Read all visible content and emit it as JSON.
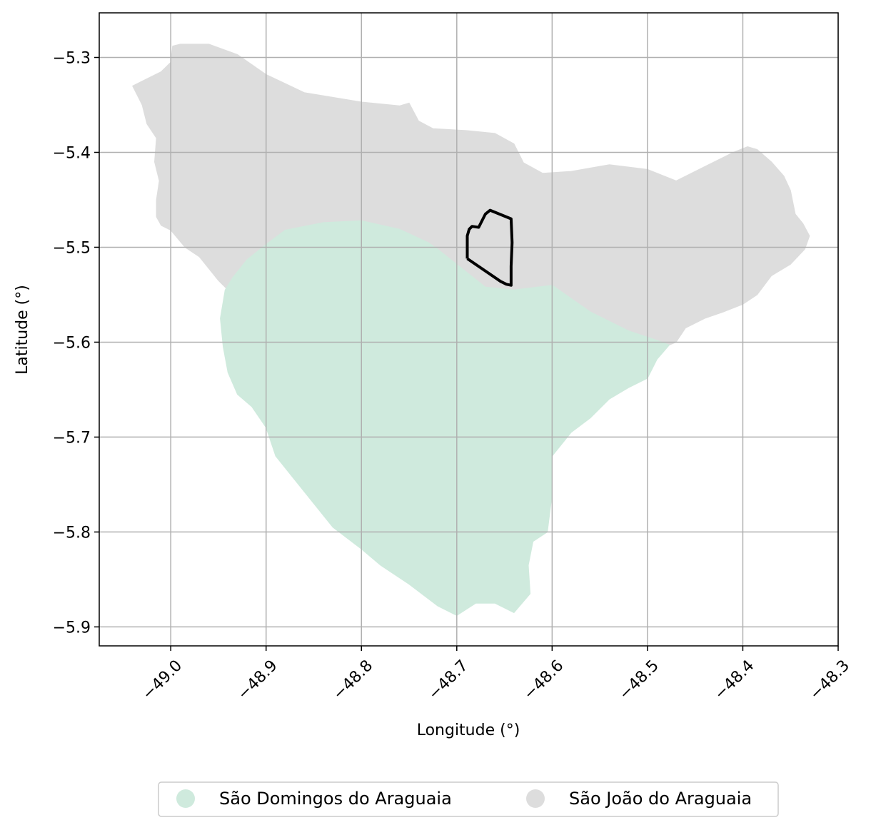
{
  "chart_data": {
    "type": "map",
    "title": "",
    "xlabel": "Longitude (°)",
    "ylabel": "Latitude (°)",
    "xlim": [
      -49.075,
      -48.3
    ],
    "ylim": [
      -5.92,
      -5.253
    ],
    "grid": true,
    "x_ticks": [
      -49.0,
      -48.9,
      -48.8,
      -48.7,
      -48.6,
      -48.5,
      -48.4,
      -48.3
    ],
    "x_tick_labels": [
      "−49.0",
      "−48.9",
      "−48.8",
      "−48.7",
      "−48.6",
      "−48.5",
      "−48.4",
      "−48.3"
    ],
    "y_ticks": [
      -5.3,
      -5.4,
      -5.5,
      -5.6,
      -5.7,
      -5.8,
      -5.9
    ],
    "y_tick_labels": [
      "−5.3",
      "−5.4",
      "−5.5",
      "−5.6",
      "−5.7",
      "−5.8",
      "−5.9"
    ],
    "regions": [
      {
        "name": "São João do Araguaia",
        "color": "#dddddd",
        "outline": [
          [
            -49.04,
            -5.33
          ],
          [
            -49.03,
            -5.325
          ],
          [
            -49.01,
            -5.315
          ],
          [
            -49.0,
            -5.305
          ],
          [
            -48.998,
            -5.288
          ],
          [
            -48.99,
            -5.286
          ],
          [
            -48.96,
            -5.286
          ],
          [
            -48.93,
            -5.297
          ],
          [
            -48.9,
            -5.318
          ],
          [
            -48.86,
            -5.337
          ],
          [
            -48.8,
            -5.347
          ],
          [
            -48.76,
            -5.351
          ],
          [
            -48.75,
            -5.348
          ],
          [
            -48.74,
            -5.367
          ],
          [
            -48.725,
            -5.375
          ],
          [
            -48.69,
            -5.377
          ],
          [
            -48.66,
            -5.38
          ],
          [
            -48.64,
            -5.391
          ],
          [
            -48.63,
            -5.411
          ],
          [
            -48.61,
            -5.422
          ],
          [
            -48.58,
            -5.42
          ],
          [
            -48.54,
            -5.413
          ],
          [
            -48.5,
            -5.418
          ],
          [
            -48.47,
            -5.43
          ],
          [
            -48.44,
            -5.415
          ],
          [
            -48.41,
            -5.4
          ],
          [
            -48.395,
            -5.394
          ],
          [
            -48.385,
            -5.397
          ],
          [
            -48.37,
            -5.41
          ],
          [
            -48.357,
            -5.425
          ],
          [
            -48.35,
            -5.44
          ],
          [
            -48.345,
            -5.465
          ],
          [
            -48.337,
            -5.475
          ],
          [
            -48.33,
            -5.488
          ],
          [
            -48.335,
            -5.502
          ],
          [
            -48.35,
            -5.518
          ],
          [
            -48.37,
            -5.53
          ],
          [
            -48.385,
            -5.55
          ],
          [
            -48.4,
            -5.56
          ],
          [
            -48.42,
            -5.568
          ],
          [
            -48.44,
            -5.575
          ],
          [
            -48.46,
            -5.585
          ],
          [
            -48.47,
            -5.6
          ],
          [
            -48.477,
            -5.603
          ],
          [
            -48.49,
            -5.598
          ],
          [
            -48.52,
            -5.588
          ],
          [
            -48.56,
            -5.568
          ],
          [
            -48.6,
            -5.54
          ],
          [
            -48.64,
            -5.545
          ],
          [
            -48.67,
            -5.542
          ],
          [
            -48.7,
            -5.518
          ],
          [
            -48.72,
            -5.502
          ],
          [
            -48.73,
            -5.495
          ],
          [
            -48.76,
            -5.481
          ],
          [
            -48.8,
            -5.472
          ],
          [
            -48.84,
            -5.474
          ],
          [
            -48.88,
            -5.482
          ],
          [
            -48.9,
            -5.497
          ],
          [
            -48.92,
            -5.513
          ],
          [
            -48.935,
            -5.532
          ],
          [
            -48.94,
            -5.545
          ],
          [
            -48.95,
            -5.535
          ],
          [
            -48.97,
            -5.51
          ],
          [
            -48.985,
            -5.5
          ],
          [
            -49.0,
            -5.482
          ],
          [
            -49.01,
            -5.477
          ],
          [
            -49.015,
            -5.468
          ],
          [
            -49.015,
            -5.45
          ],
          [
            -49.012,
            -5.43
          ],
          [
            -49.017,
            -5.41
          ],
          [
            -49.015,
            -5.385
          ],
          [
            -49.025,
            -5.37
          ],
          [
            -49.03,
            -5.35
          ],
          [
            -49.04,
            -5.33
          ]
        ]
      },
      {
        "name": "São Domingos do Araguaia",
        "color": "#cfeadd",
        "outline": [
          [
            -48.943,
            -5.545
          ],
          [
            -48.935,
            -5.532
          ],
          [
            -48.92,
            -5.513
          ],
          [
            -48.9,
            -5.497
          ],
          [
            -48.88,
            -5.482
          ],
          [
            -48.84,
            -5.474
          ],
          [
            -48.8,
            -5.472
          ],
          [
            -48.76,
            -5.481
          ],
          [
            -48.73,
            -5.495
          ],
          [
            -48.72,
            -5.502
          ],
          [
            -48.7,
            -5.518
          ],
          [
            -48.67,
            -5.542
          ],
          [
            -48.64,
            -5.545
          ],
          [
            -48.6,
            -5.54
          ],
          [
            -48.56,
            -5.568
          ],
          [
            -48.52,
            -5.588
          ],
          [
            -48.49,
            -5.598
          ],
          [
            -48.477,
            -5.603
          ],
          [
            -48.49,
            -5.618
          ],
          [
            -48.5,
            -5.638
          ],
          [
            -48.52,
            -5.648
          ],
          [
            -48.54,
            -5.66
          ],
          [
            -48.56,
            -5.68
          ],
          [
            -48.58,
            -5.695
          ],
          [
            -48.6,
            -5.72
          ],
          [
            -48.6,
            -5.76
          ],
          [
            -48.605,
            -5.8
          ],
          [
            -48.62,
            -5.81
          ],
          [
            -48.625,
            -5.835
          ],
          [
            -48.623,
            -5.865
          ],
          [
            -48.64,
            -5.885
          ],
          [
            -48.66,
            -5.875
          ],
          [
            -48.68,
            -5.875
          ],
          [
            -48.7,
            -5.888
          ],
          [
            -48.72,
            -5.878
          ],
          [
            -48.75,
            -5.855
          ],
          [
            -48.78,
            -5.835
          ],
          [
            -48.8,
            -5.818
          ],
          [
            -48.83,
            -5.795
          ],
          [
            -48.85,
            -5.77
          ],
          [
            -48.87,
            -5.745
          ],
          [
            -48.89,
            -5.72
          ],
          [
            -48.9,
            -5.69
          ],
          [
            -48.915,
            -5.668
          ],
          [
            -48.93,
            -5.655
          ],
          [
            -48.94,
            -5.632
          ],
          [
            -48.945,
            -5.605
          ],
          [
            -48.948,
            -5.575
          ],
          [
            -48.943,
            -5.545
          ]
        ]
      }
    ],
    "highlight_outline": {
      "color": "#000000",
      "points": [
        [
          -48.689,
          -5.512
        ],
        [
          -48.689,
          -5.488
        ],
        [
          -48.687,
          -5.481
        ],
        [
          -48.684,
          -5.478
        ],
        [
          -48.677,
          -5.479
        ],
        [
          -48.67,
          -5.465
        ],
        [
          -48.665,
          -5.461
        ],
        [
          -48.643,
          -5.47
        ],
        [
          -48.642,
          -5.495
        ],
        [
          -48.643,
          -5.52
        ],
        [
          -48.643,
          -5.54
        ],
        [
          -48.648,
          -5.539
        ],
        [
          -48.654,
          -5.536
        ],
        [
          -48.689,
          -5.512
        ]
      ]
    },
    "legend": {
      "placement": "bottom-center",
      "entries": [
        {
          "label": "São Domingos do Araguaia",
          "color": "#cfeadd"
        },
        {
          "label": "São João do Araguaia",
          "color": "#dddddd"
        }
      ]
    }
  }
}
